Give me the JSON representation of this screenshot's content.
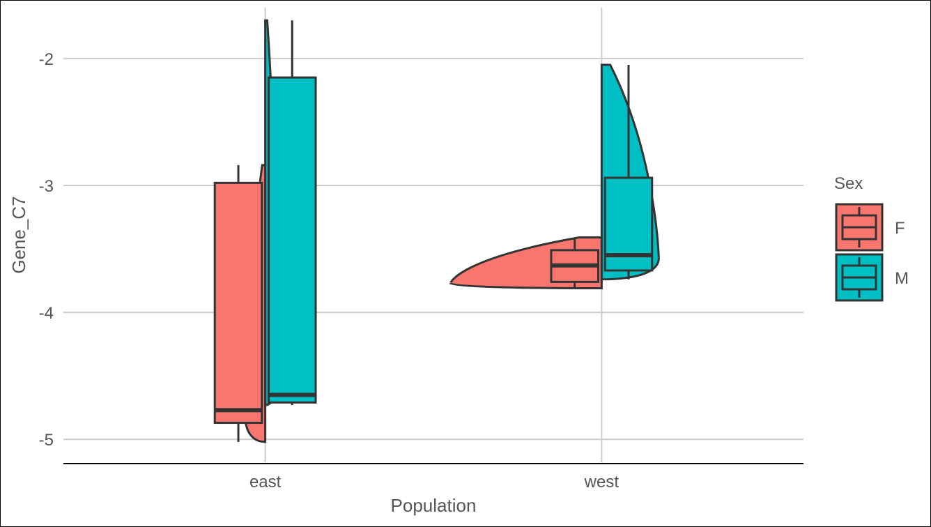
{
  "chart_data": {
    "type": "violin-box",
    "title": "",
    "xlabel": "Population",
    "ylabel": "Gene_C7",
    "categories": [
      "east",
      "west"
    ],
    "ylim": [
      -5.18,
      -1.6
    ],
    "yticks": [
      -5,
      -4,
      -3,
      -2
    ],
    "ytick_labels": [
      "-5",
      "-4",
      "-3",
      "-2"
    ],
    "grid": true,
    "legend": {
      "title": "Sex",
      "position": "right",
      "entries": [
        {
          "label": "F",
          "color": "#F8766D"
        },
        {
          "label": "M",
          "color": "#00BFC4"
        }
      ]
    },
    "series": [
      {
        "name": "F",
        "color": "#F8766D",
        "groups": [
          {
            "category": "east",
            "violin": {
              "min": -5.02,
              "max": -2.84,
              "half_width": 0.06
            },
            "box": {
              "whisker_low": -5.02,
              "q1": -4.87,
              "median": -4.77,
              "q3": -2.98,
              "whisker_high": -2.84
            }
          },
          {
            "category": "west",
            "violin": {
              "min": -3.81,
              "max": -3.41,
              "half_width": 0.45
            },
            "box": {
              "whisker_low": -3.81,
              "q1": -3.76,
              "median": -3.63,
              "q3": -3.51,
              "whisker_high": -3.41
            }
          }
        ]
      },
      {
        "name": "M",
        "color": "#00BFC4",
        "groups": [
          {
            "category": "east",
            "violin": {
              "min": -4.73,
              "max": -1.7,
              "half_width": 0.04
            },
            "box": {
              "whisker_low": -4.73,
              "q1": -4.71,
              "median": -4.65,
              "q3": -2.15,
              "whisker_high": -1.7
            }
          },
          {
            "category": "west",
            "violin": {
              "min": -3.74,
              "max": -2.05,
              "half_width": 0.17
            },
            "box": {
              "whisker_low": -3.74,
              "q1": -3.67,
              "median": -3.55,
              "q3": -2.94,
              "whisker_high": -2.05
            }
          }
        ]
      }
    ]
  }
}
